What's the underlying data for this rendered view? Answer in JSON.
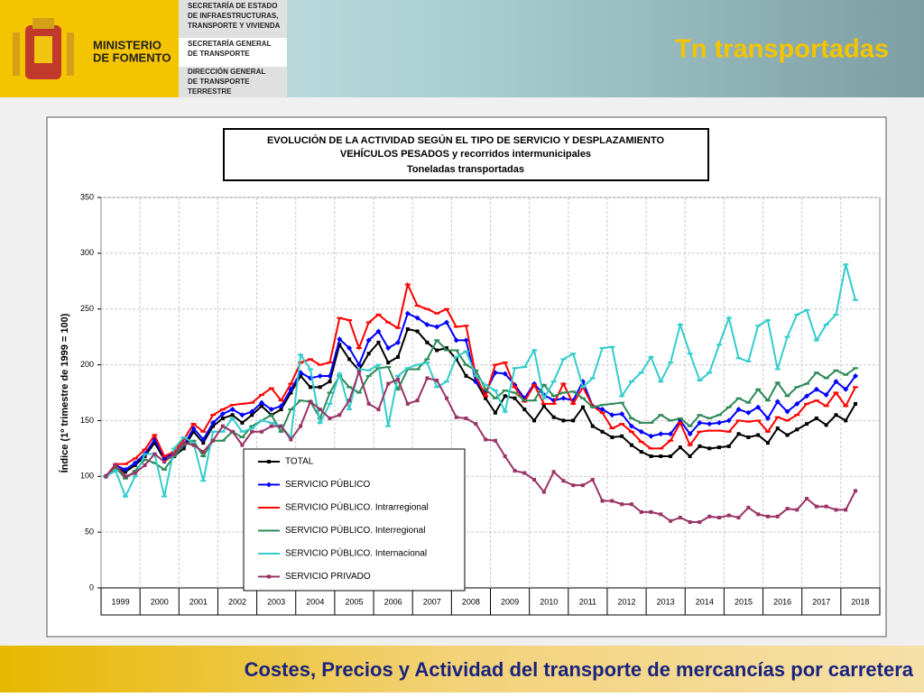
{
  "header": {
    "ministry": [
      "MINISTERIO",
      "DE FOMENTO"
    ],
    "boxes": [
      [
        "SECRETARÍA DE ESTADO",
        "DE INFRAESTRUCTURAS,",
        "TRANSPORTE Y VIVIENDA"
      ],
      [
        "SECRETARÍA GENERAL",
        "DE TRANSPORTE"
      ],
      [
        "DIRECCIÓN GENERAL",
        "DE TRANSPORTE",
        "TERRESTRE"
      ]
    ],
    "title": "Tn transportadas"
  },
  "footer": "Costes, Precios y Actividad del transporte de mercancías por carretera",
  "chart_data": {
    "type": "line",
    "title": [
      "EVOLUCIÓN  DE  LA  ACTIVIDAD  SEGÚN  EL  TIPO  DE  SERVICIO  Y  DESPLAZAMIENTO",
      "VEHÍCULOS  PESADOS  y  recorridos  intermunicipales",
      "Toneladas transportadas"
    ],
    "ylabel": "Índice (1º trimestre de 1999 = 100)",
    "categories": [
      "1999",
      null,
      null,
      null,
      "2000",
      null,
      null,
      null,
      "2001",
      null,
      null,
      null,
      "2002",
      null,
      null,
      null,
      "2003",
      null,
      null,
      null,
      "2004",
      null,
      null,
      null,
      "2005",
      null,
      null,
      null,
      "2006",
      null,
      null,
      null,
      "2007",
      null,
      null,
      null,
      "2008",
      null,
      null,
      null,
      "2009",
      null,
      null,
      null,
      "2010",
      null,
      null,
      null,
      "2011",
      null,
      null,
      null,
      "2012",
      null,
      null,
      null,
      "2013",
      null,
      null,
      null,
      "2014",
      null,
      null,
      null,
      "2015",
      null,
      null,
      null,
      "2016",
      null,
      null,
      null,
      "2017",
      null,
      null,
      null,
      "2018",
      null
    ],
    "ylim": [
      0,
      350
    ],
    "yticks": [
      0,
      50,
      100,
      150,
      200,
      250,
      300,
      350
    ],
    "grid": true,
    "legend": "bottom-left",
    "series": [
      {
        "name": "TOTAL",
        "color": "#000000",
        "values": [
          100,
          108,
          104,
          110,
          118,
          130,
          115,
          118,
          125,
          140,
          130,
          145,
          152,
          155,
          148,
          155,
          163,
          155,
          160,
          175,
          190,
          180,
          180,
          185,
          218,
          205,
          195,
          210,
          220,
          202,
          207,
          232,
          230,
          220,
          213,
          215,
          205,
          190,
          185,
          170,
          157,
          172,
          170,
          160,
          150,
          163,
          153,
          150,
          150,
          162,
          145,
          140,
          135,
          136,
          128,
          122,
          118,
          118,
          118,
          126,
          118,
          127,
          125,
          126,
          127,
          138,
          135,
          137,
          130,
          143,
          137,
          142,
          147,
          152,
          146,
          155,
          150,
          165
        ]
      },
      {
        "name": "SERVICIO PÚBLICO",
        "color": "#0000ff",
        "values": [
          100,
          110,
          106,
          112,
          120,
          133,
          117,
          120,
          128,
          143,
          133,
          148,
          156,
          160,
          155,
          158,
          166,
          160,
          163,
          178,
          193,
          188,
          190,
          190,
          223,
          215,
          200,
          222,
          230,
          215,
          220,
          246,
          242,
          236,
          234,
          238,
          222,
          222,
          185,
          175,
          193,
          192,
          182,
          170,
          183,
          173,
          168,
          170,
          168,
          185,
          163,
          160,
          155,
          156,
          145,
          140,
          136,
          138,
          138,
          150,
          138,
          148,
          147,
          148,
          150,
          160,
          157,
          162,
          152,
          167,
          158,
          165,
          172,
          178,
          173,
          185,
          178,
          190
        ]
      },
      {
        "name": "SERVICIO PÚBLICO. Intrarregional",
        "color": "#ff0000",
        "values": [
          100,
          111,
          111,
          116,
          124,
          137,
          118,
          122,
          133,
          147,
          140,
          155,
          160,
          164,
          165,
          166,
          173,
          179,
          168,
          183,
          202,
          205,
          200,
          202,
          242,
          240,
          215,
          238,
          245,
          238,
          233,
          272,
          253,
          250,
          246,
          250,
          234,
          235,
          190,
          172,
          200,
          202,
          180,
          167,
          182,
          165,
          165,
          183,
          165,
          180,
          163,
          157,
          143,
          147,
          140,
          131,
          125,
          125,
          132,
          148,
          128,
          140,
          141,
          141,
          140,
          150,
          149,
          150,
          140,
          153,
          150,
          155,
          165,
          168,
          163,
          175,
          163,
          180
        ]
      },
      {
        "name": "SERVICIO PÚBLICO. Interregional",
        "color": "#2e8b57",
        "values": [
          100,
          108,
          98,
          105,
          115,
          112,
          106,
          118,
          128,
          132,
          118,
          132,
          132,
          140,
          135,
          145,
          150,
          155,
          140,
          160,
          168,
          167,
          152,
          175,
          190,
          180,
          175,
          190,
          197,
          198,
          178,
          196,
          196,
          205,
          222,
          213,
          213,
          200,
          195,
          178,
          170,
          177,
          175,
          168,
          168,
          182,
          172,
          175,
          176,
          170,
          162,
          164,
          165,
          166,
          152,
          148,
          148,
          155,
          150,
          152,
          145,
          155,
          152,
          155,
          162,
          170,
          166,
          178,
          168,
          184,
          172,
          180,
          183,
          193,
          188,
          195,
          191,
          197
        ]
      },
      {
        "name": "SERVICIO PÚBLICO. Internacional",
        "color": "#33cccc",
        "values": [
          100,
          105,
          82,
          100,
          120,
          120,
          82,
          125,
          135,
          130,
          96,
          140,
          140,
          152,
          140,
          143,
          150,
          148,
          145,
          135,
          209,
          196,
          148,
          165,
          192,
          160,
          196,
          195,
          200,
          145,
          190,
          197,
          200,
          202,
          180,
          185,
          207,
          212,
          190,
          182,
          177,
          158,
          197,
          198,
          213,
          170,
          185,
          205,
          210,
          180,
          188,
          215,
          216,
          172,
          185,
          193,
          207,
          185,
          202,
          236,
          210,
          186,
          193,
          218,
          242,
          206,
          203,
          235,
          240,
          196,
          225,
          245,
          249,
          222,
          236,
          245,
          290,
          258
        ]
      },
      {
        "name": "SERVICIO PRIVADO",
        "color": "#993366",
        "values": [
          100,
          110,
          100,
          103,
          110,
          120,
          113,
          120,
          130,
          128,
          122,
          132,
          145,
          140,
          128,
          140,
          140,
          145,
          145,
          133,
          145,
          167,
          160,
          152,
          155,
          168,
          194,
          165,
          160,
          183,
          187,
          165,
          168,
          188,
          186,
          170,
          153,
          152,
          147,
          133,
          132,
          118,
          105,
          103,
          97,
          86,
          104,
          96,
          92,
          92,
          97,
          78,
          78,
          75,
          75,
          68,
          68,
          66,
          60,
          63,
          59,
          59,
          64,
          63,
          65,
          63,
          72,
          66,
          64,
          64,
          71,
          70,
          80,
          73,
          73,
          70,
          70,
          87
        ]
      }
    ]
  }
}
